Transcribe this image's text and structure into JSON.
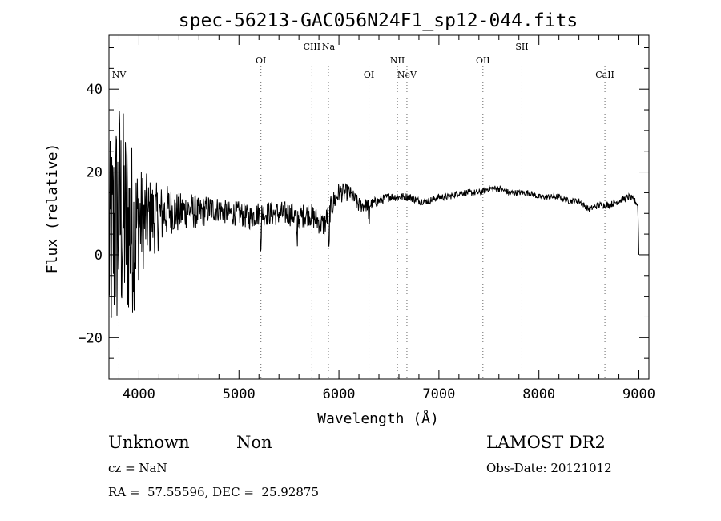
{
  "chart_data": {
    "type": "line",
    "title": "spec-56213-GAC056N24F1_sp12-044.fits",
    "xlabel": "Wavelength (Å)",
    "ylabel": "Flux (relative)",
    "xlim": [
      3700,
      9100
    ],
    "ylim": [
      -30,
      53
    ],
    "xticks": [
      4000,
      5000,
      6000,
      7000,
      8000,
      9000
    ],
    "yticks": [
      -20,
      0,
      20,
      40
    ],
    "grid": false,
    "line_markers": [
      {
        "label": "NV",
        "x": 3800,
        "row": 2
      },
      {
        "label": "OI",
        "x": 5220,
        "row": 1
      },
      {
        "label": "CIII",
        "x": 5730,
        "row": 0
      },
      {
        "label": "Na",
        "x": 5895,
        "row": 0
      },
      {
        "label": "OI",
        "x": 6300,
        "row": 2
      },
      {
        "label": "NII",
        "x": 6585,
        "row": 1
      },
      {
        "label": "NeV",
        "x": 6680,
        "row": 2
      },
      {
        "label": "OII",
        "x": 7440,
        "row": 1
      },
      {
        "label": "SII",
        "x": 7830,
        "row": 0
      },
      {
        "label": "CaII",
        "x": 8660,
        "row": 2
      }
    ],
    "series": [
      {
        "x": [
          3700,
          3750,
          3800,
          3850,
          3900,
          3950,
          4000,
          4100,
          4200,
          4300,
          4400,
          4500,
          4600,
          4700,
          4800,
          4900,
          5000,
          5100,
          5200,
          5300,
          5400,
          5500,
          5600,
          5700,
          5800,
          5850,
          5900,
          5950,
          6000,
          6100,
          6200,
          6300,
          6400,
          6500,
          6600,
          6700,
          6800,
          6900,
          7000,
          7100,
          7200,
          7300,
          7400,
          7500,
          7600,
          7700,
          7800,
          7900,
          8000,
          8100,
          8200,
          8300,
          8400,
          8500,
          8600,
          8700,
          8800,
          8900,
          8960,
          8990,
          9000
        ],
        "y": [
          0,
          5,
          10,
          8,
          7,
          6,
          8,
          9,
          9,
          11,
          10,
          11,
          10,
          11,
          11,
          10,
          10,
          9,
          10,
          10,
          10,
          10,
          9,
          10,
          8,
          7,
          10,
          13,
          15,
          15,
          12,
          12,
          13,
          14,
          14,
          14,
          13,
          13,
          14,
          14,
          15,
          15,
          15,
          16,
          16,
          15,
          15,
          15,
          14,
          14,
          14,
          13,
          13,
          11,
          12,
          12,
          13,
          14,
          13,
          12,
          0
        ],
        "noise_scale": [
          26,
          28,
          30,
          27,
          24,
          20,
          14,
          10,
          8,
          6,
          5,
          4.5,
          4,
          3.5,
          3,
          3,
          3,
          3,
          3,
          3,
          3,
          3,
          3,
          3,
          3,
          3,
          3,
          3,
          2.5,
          2,
          2,
          1.5,
          1.2,
          1.1,
          1,
          1,
          0.9,
          0.9,
          0.8,
          0.8,
          0.8,
          0.8,
          0.8,
          0.8,
          0.8,
          0.8,
          0.7,
          0.7,
          0.7,
          0.7,
          0.7,
          0.7,
          0.7,
          0.7,
          0.8,
          0.8,
          0.8,
          0.8,
          0.8,
          0.8,
          0
        ]
      }
    ]
  },
  "info": {
    "object_class": "Unknown",
    "object_subclass": "Non",
    "survey": "LAMOST DR2",
    "redshift": "cz = NaN",
    "obs_date": "Obs-Date: 20121012",
    "coords": "RA =  57.55596, DEC =  25.92875"
  }
}
